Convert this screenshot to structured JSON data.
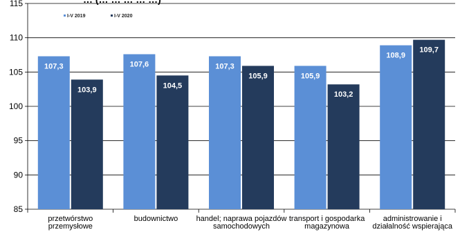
{
  "chart_data": {
    "type": "bar",
    "title": "… (… … … … …)",
    "categories": [
      [
        "przetwórstwo",
        "przemysłowe"
      ],
      [
        "budownictwo"
      ],
      [
        "handel; naprawa pojazdów",
        "samochodowych"
      ],
      [
        "transport i gospodarka",
        "magazynowa"
      ],
      [
        "administrowanie i",
        "działalność wspierająca"
      ]
    ],
    "series": [
      {
        "name": "I-V 2019",
        "color": "#5b8fd6",
        "values": [
          107.3,
          107.6,
          107.3,
          105.9,
          108.9
        ],
        "labels": [
          "107,3",
          "107,6",
          "107,3",
          "105,9",
          "108,9"
        ]
      },
      {
        "name": "I-V 2020",
        "color": "#243b5c",
        "values": [
          103.9,
          104.5,
          105.9,
          103.2,
          109.7
        ],
        "labels": [
          "103,9",
          "104,5",
          "105,9",
          "103,2",
          "109,7"
        ]
      }
    ],
    "ylim": [
      85,
      115
    ],
    "yticks": [
      85,
      90,
      95,
      100,
      105,
      110,
      115
    ],
    "grid": true,
    "legend": "top-left",
    "xlabel": "",
    "ylabel": ""
  }
}
